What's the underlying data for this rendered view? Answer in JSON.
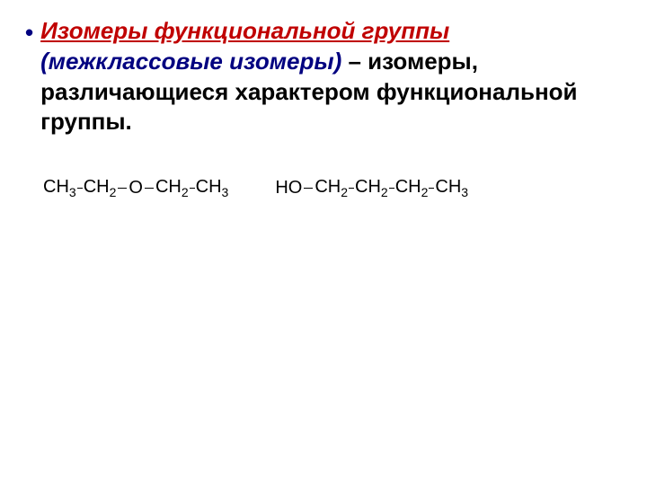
{
  "bullet": "•",
  "text": {
    "term": "Изомеры функциональной группы",
    "subterm": " (межклассовые изомеры)",
    "connector": " – ",
    "definition": "изомеры, различающиеся характером функциональной группы."
  },
  "molecule1": {
    "type": "molecule",
    "groups": [
      "CH3",
      "CH2",
      "O",
      "CH2",
      "CH3"
    ],
    "color": "#000000",
    "fontsize": 20,
    "sub_fontsize": 14
  },
  "molecule2": {
    "type": "molecule",
    "groups": [
      "HO",
      "CH2",
      "CH2",
      "CH2",
      "CH3"
    ],
    "color": "#000000",
    "fontsize": 20,
    "sub_fontsize": 14
  },
  "colors": {
    "term_color": "#c00000",
    "subterm_color": "#000080",
    "bullet_color": "#000080",
    "definition_color": "#000000",
    "background": "#ffffff"
  },
  "typography": {
    "main_fontsize": 26,
    "main_weight": "bold",
    "line_height": 1.3
  }
}
